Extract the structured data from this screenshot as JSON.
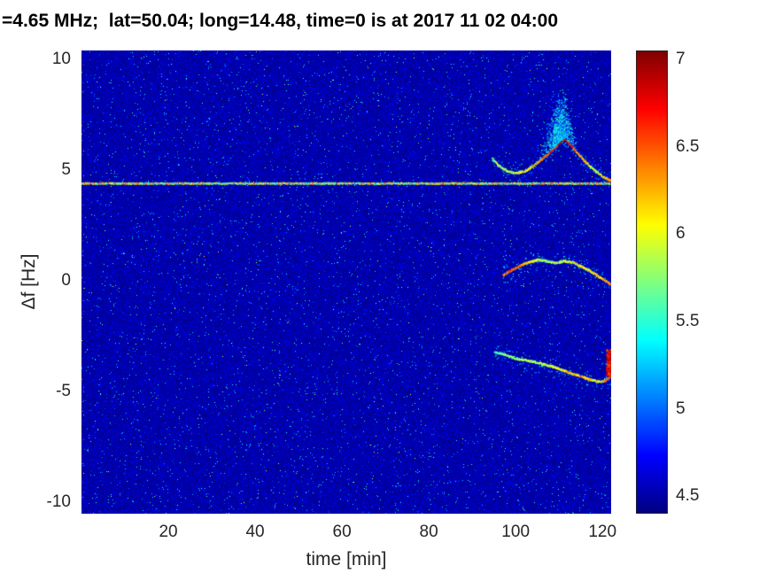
{
  "chart_data": {
    "type": "heatmap",
    "title": "=4.65 MHz;  lat=50.04; long=14.48, time=0 is at 2017 11 02 04:00",
    "xlabel": "time [min]",
    "ylabel": "Δf [Hz]",
    "xlim": [
      0,
      122
    ],
    "ylim": [
      -10.5,
      10.4
    ],
    "xticks": [
      20,
      40,
      60,
      80,
      100,
      120
    ],
    "yticks": [
      -10,
      -5,
      0,
      5,
      10
    ],
    "colormap": "jet",
    "grid": false,
    "legend": "none",
    "colorbar": {
      "min": 4.4,
      "max": 7.05,
      "ticks": [
        4.5,
        5,
        5.5,
        6,
        6.5,
        7
      ],
      "position": "right"
    },
    "noise": {
      "floor": 4.4,
      "base_spread": 0.3,
      "speck_prob": 0.013,
      "speck_range": [
        4.8,
        5.55
      ],
      "bright_speck_prob": 0.0015,
      "bright_speck_range": [
        5.4,
        6.1
      ]
    },
    "features": {
      "carrier_line": {
        "f": 4.4,
        "t_range": [
          0,
          122
        ],
        "value_range": [
          5.3,
          6.6
        ]
      },
      "traces": [
        {
          "name": "upper-doppler-trace",
          "points": [
            [
              94.5,
              5.5,
              5.7
            ],
            [
              96,
              5.2,
              5.8
            ],
            [
              98,
              4.95,
              5.9
            ],
            [
              100,
              4.85,
              6.0
            ],
            [
              102,
              4.95,
              6.1
            ],
            [
              104,
              5.2,
              6.2
            ],
            [
              106,
              5.5,
              6.4
            ],
            [
              108,
              5.85,
              6.6
            ],
            [
              110,
              6.2,
              6.8
            ],
            [
              111,
              6.4,
              6.9
            ],
            [
              112,
              6.25,
              6.7
            ],
            [
              114,
              5.8,
              6.4
            ],
            [
              116,
              5.35,
              6.1
            ],
            [
              118,
              5.0,
              5.9
            ],
            [
              120,
              4.7,
              6.1
            ],
            [
              122,
              4.5,
              6.4
            ]
          ],
          "halo": 0.55,
          "cloud": {
            "t_mean": 110,
            "t_sigma": 2.8,
            "count": 900,
            "spread": 1.2,
            "value_range": [
              4.85,
              5.6
            ]
          }
        },
        {
          "name": "middle-doppler-trace",
          "points": [
            [
              97,
              0.25,
              6.3
            ],
            [
              99,
              0.5,
              6.6
            ],
            [
              101,
              0.7,
              6.4
            ],
            [
              103,
              0.85,
              6.1
            ],
            [
              105,
              0.95,
              5.9
            ],
            [
              107,
              0.9,
              5.8
            ],
            [
              109,
              0.8,
              5.8
            ],
            [
              111,
              0.9,
              5.9
            ],
            [
              113,
              0.85,
              6.0
            ],
            [
              115,
              0.65,
              6.1
            ],
            [
              117,
              0.45,
              6.0
            ],
            [
              119,
              0.2,
              6.2
            ],
            [
              121,
              -0.05,
              6.3
            ],
            [
              122,
              -0.2,
              6.5
            ]
          ],
          "halo": 0.4
        },
        {
          "name": "lower-doppler-trace",
          "points": [
            [
              95,
              -3.2,
              5.5
            ],
            [
              97,
              -3.3,
              5.7
            ],
            [
              99,
              -3.45,
              5.8
            ],
            [
              101,
              -3.55,
              5.8
            ],
            [
              103,
              -3.6,
              5.9
            ],
            [
              105,
              -3.7,
              5.8
            ],
            [
              107,
              -3.8,
              5.9
            ],
            [
              109,
              -3.9,
              6.0
            ],
            [
              111,
              -4.05,
              6.1
            ],
            [
              113,
              -4.2,
              6.2
            ],
            [
              115,
              -4.3,
              6.3
            ],
            [
              117,
              -4.45,
              6.1
            ],
            [
              119,
              -4.55,
              6.0
            ],
            [
              120.5,
              -4.5,
              6.4
            ],
            [
              122,
              -4.25,
              6.7
            ]
          ],
          "halo": 0.4
        }
      ],
      "red_streak": {
        "t_range": [
          120.8,
          122
        ],
        "f_range": [
          -4.25,
          -3.05
        ],
        "value_range": [
          6.4,
          7.05
        ],
        "count": 170
      }
    }
  }
}
